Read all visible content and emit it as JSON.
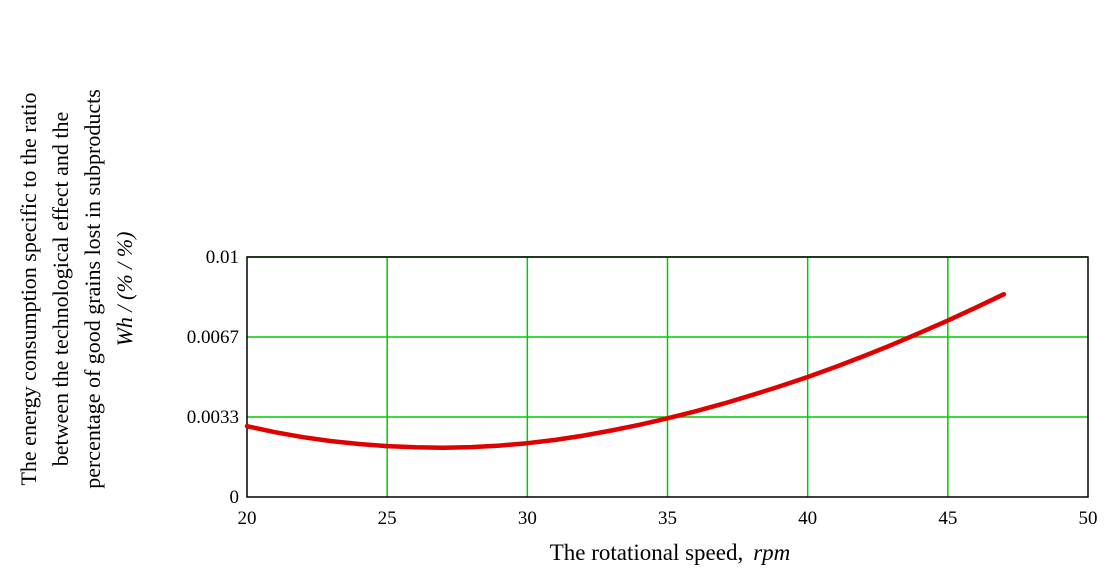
{
  "chart_data": {
    "type": "line",
    "x_label_text": "The rotational speed,",
    "x_label_unit": "rpm",
    "y_label_lines": [
      "The energy consumption specific to the ratio",
      "between the technological effect and the",
      "percentage of good grains lost in subproducts"
    ],
    "y_label_unit": "Wh / (% / %)",
    "xlim": [
      20,
      50
    ],
    "ylim": [
      0,
      0.01
    ],
    "x_ticks": [
      "20",
      "25",
      "30",
      "35",
      "40",
      "45",
      "50"
    ],
    "y_ticks": [
      "0",
      "0.0033",
      "0.0067",
      "0.01"
    ],
    "grid": true,
    "grid_color": "#00cc00",
    "series": [
      {
        "color": "#e00000",
        "x": [
          20,
          21,
          22,
          23,
          24,
          25,
          26,
          27,
          28,
          29,
          30,
          31,
          32,
          33,
          34,
          35,
          36,
          37,
          38,
          39,
          40,
          41,
          42,
          43,
          44,
          45,
          46,
          47
        ],
        "y": [
          0.00295,
          0.0027,
          0.00249,
          0.00233,
          0.00221,
          0.00212,
          0.00207,
          0.00205,
          0.00208,
          0.00214,
          0.00224,
          0.00238,
          0.00256,
          0.00277,
          0.00301,
          0.00328,
          0.00357,
          0.00389,
          0.00424,
          0.00461,
          0.005,
          0.00542,
          0.00587,
          0.00634,
          0.00684,
          0.00735,
          0.00789,
          0.00845
        ]
      }
    ]
  }
}
